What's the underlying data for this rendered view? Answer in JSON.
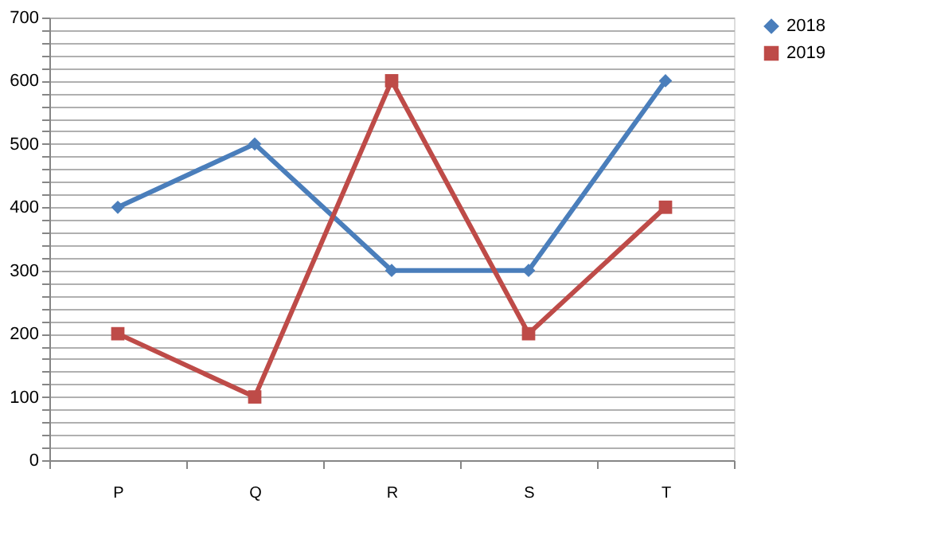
{
  "chart_data": {
    "type": "line",
    "categories": [
      "P",
      "Q",
      "R",
      "S",
      "T"
    ],
    "series": [
      {
        "name": "2018",
        "color": "#4a7ebb",
        "marker": "diamond",
        "values": [
          400,
          500,
          300,
          300,
          600
        ]
      },
      {
        "name": "2019",
        "color": "#be4b48",
        "marker": "square",
        "values": [
          200,
          100,
          600,
          200,
          400
        ]
      }
    ],
    "ylim": [
      0,
      700
    ],
    "yticks": [
      0,
      {
        "value": 20,
        "label": null
      },
      {
        "value": 40,
        "label": null
      },
      {
        "value": 60,
        "label": null
      },
      {
        "value": 80,
        "label": null
      },
      100,
      {
        "value": 120,
        "label": null
      },
      {
        "value": 140,
        "label": null
      },
      {
        "value": 160,
        "label": null
      },
      {
        "value": 180,
        "label": null
      },
      200,
      {
        "value": 220,
        "label": null
      },
      {
        "value": 240,
        "label": null
      },
      {
        "value": 260,
        "label": null
      },
      {
        "value": 280,
        "label": null
      },
      300,
      {
        "value": 320,
        "label": null
      },
      {
        "value": 340,
        "label": null
      },
      {
        "value": 360,
        "label": null
      },
      {
        "value": 380,
        "label": null
      },
      400,
      {
        "value": 420,
        "label": null
      },
      {
        "value": 440,
        "label": null
      },
      {
        "value": 460,
        "label": null
      },
      {
        "value": 480,
        "label": null
      },
      500,
      {
        "value": 520,
        "label": null
      },
      {
        "value": 540,
        "label": null
      },
      {
        "value": 560,
        "label": null
      },
      {
        "value": 580,
        "label": null
      },
      600,
      {
        "value": 620,
        "label": null
      },
      {
        "value": 640,
        "label": null
      },
      {
        "value": 660,
        "label": null
      },
      {
        "value": 680,
        "label": null
      },
      700
    ],
    "grid": "y",
    "legend": "right",
    "line_style": "solid"
  }
}
